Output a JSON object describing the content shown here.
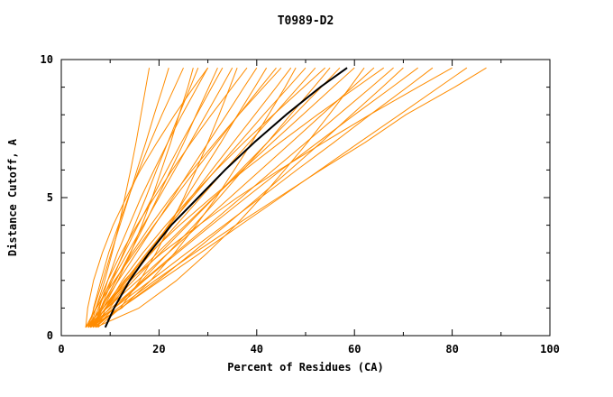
{
  "title": "T0989-D2",
  "chart_data": {
    "type": "line",
    "title": "T0989-D2",
    "xlabel": "Percent of Residues (CA)",
    "ylabel": "Distance Cutoff, A",
    "xlim": [
      0,
      100
    ],
    "ylim": [
      0,
      10
    ],
    "x_major_ticks": [
      0,
      20,
      40,
      60,
      80,
      100
    ],
    "x_minor_ticks": [
      10,
      30,
      50,
      70,
      90
    ],
    "y_major_ticks": [
      0,
      5,
      10
    ],
    "y_minor_ticks": [
      1,
      2,
      3,
      4,
      6,
      7,
      8,
      9
    ],
    "grid": false,
    "legend": "none",
    "colors": {
      "model_lines": "#ff8c00",
      "highlight_line": "#000000"
    },
    "y_grid": [
      0.3,
      1,
      2,
      3,
      4,
      5,
      6,
      7,
      8,
      9,
      9.7
    ],
    "orange_series_x": [
      [
        5,
        7.1,
        8.9,
        10.4,
        11.8,
        13.0,
        14.2,
        15.3,
        16.3,
        17.3,
        18
      ],
      [
        5.5,
        6.7,
        8.5,
        10.2,
        12.0,
        13.8,
        15.5,
        17.3,
        19.0,
        20.8,
        22
      ],
      [
        6,
        6.6,
        8.1,
        9.7,
        11.7,
        13.7,
        15.9,
        18.2,
        20.6,
        23.2,
        25
      ],
      [
        5,
        8.6,
        11.6,
        14.2,
        16.5,
        18.6,
        20.5,
        22.4,
        24.1,
        25.9,
        27
      ],
      [
        6.5,
        8.1,
        10.4,
        12.7,
        15.0,
        17.3,
        19.5,
        21.8,
        24.1,
        26.4,
        28
      ],
      [
        7,
        7.8,
        9.5,
        11.5,
        13.9,
        16.3,
        19.0,
        21.8,
        24.7,
        27.8,
        30
      ],
      [
        5,
        5.4,
        6.6,
        8.4,
        10.6,
        13.3,
        16.2,
        19.6,
        23.2,
        27.1,
        30
      ],
      [
        5.5,
        8.1,
        11.2,
        14.1,
        17.0,
        19.7,
        22.4,
        25.1,
        27.6,
        30.2,
        32
      ],
      [
        6,
        7.6,
        10.1,
        12.9,
        15.7,
        18.6,
        21.6,
        24.6,
        27.7,
        30.8,
        33
      ],
      [
        5,
        7.2,
        10.4,
        13.6,
        16.8,
        20.0,
        23.2,
        26.4,
        29.6,
        32.8,
        35
      ],
      [
        7.5,
        12.1,
        16.1,
        19.4,
        22.3,
        25.1,
        27.6,
        30.0,
        32.3,
        34.5,
        36
      ],
      [
        6,
        7.1,
        9.5,
        12.3,
        15.5,
        19.0,
        22.7,
        26.6,
        30.7,
        35.0,
        38
      ],
      [
        5.5,
        8.1,
        11.7,
        15.4,
        19.1,
        22.8,
        26.4,
        30.1,
        33.8,
        37.4,
        40
      ],
      [
        6.5,
        9.9,
        14.1,
        18.0,
        21.9,
        25.5,
        29.1,
        32.7,
        36.1,
        39.6,
        42
      ],
      [
        5,
        7.2,
        10.9,
        14.9,
        19.0,
        23.2,
        27.5,
        31.9,
        36.3,
        40.8,
        44
      ],
      [
        7,
        8.3,
        11.1,
        14.5,
        18.3,
        22.4,
        26.8,
        31.5,
        36.3,
        41.4,
        45
      ],
      [
        6,
        9.1,
        13.4,
        17.8,
        22.2,
        26.5,
        30.8,
        35.2,
        39.6,
        44.0,
        47
      ],
      [
        5.5,
        12.4,
        18.3,
        23.2,
        27.6,
        31.7,
        35.4,
        39.0,
        42.4,
        45.8,
        48
      ],
      [
        6.5,
        9.0,
        13.1,
        17.5,
        22.1,
        26.8,
        31.6,
        36.5,
        41.4,
        46.5,
        50
      ],
      [
        5,
        8.5,
        13.5,
        18.5,
        23.5,
        28.5,
        33.5,
        38.5,
        43.5,
        48.5,
        52
      ],
      [
        7.5,
        9.1,
        12.5,
        16.7,
        21.4,
        26.4,
        31.7,
        37.4,
        43.4,
        49.6,
        54
      ],
      [
        6,
        10.8,
        16.5,
        21.9,
        27.2,
        32.3,
        37.2,
        42.2,
        46.9,
        51.7,
        55
      ],
      [
        5.5,
        9.3,
        14.8,
        20.3,
        25.8,
        31.3,
        36.7,
        42.2,
        47.7,
        53.2,
        57
      ],
      [
        6,
        9.1,
        14.2,
        19.7,
        25.4,
        31.2,
        37.1,
        43.2,
        49.4,
        55.6,
        60
      ],
      [
        7,
        15.9,
        23.6,
        29.9,
        35.7,
        40.9,
        45.7,
        50.4,
        54.8,
        59.1,
        62
      ],
      [
        5,
        9.4,
        15.7,
        21.9,
        28.2,
        34.5,
        40.8,
        47.1,
        53.3,
        59.6,
        64
      ],
      [
        6.5,
        8.5,
        12.9,
        18.2,
        24.2,
        30.7,
        37.5,
        44.8,
        52.4,
        60.4,
        66
      ],
      [
        5.5,
        10.2,
        16.8,
        23.4,
        30.1,
        36.8,
        43.4,
        50.1,
        56.7,
        63.4,
        68
      ],
      [
        6,
        12.2,
        19.8,
        26.8,
        33.7,
        40.3,
        46.8,
        53.2,
        59.4,
        65.7,
        70
      ],
      [
        7,
        10.8,
        17.0,
        23.8,
        30.7,
        37.8,
        45.0,
        52.5,
        60.0,
        67.7,
        73
      ],
      [
        5.5,
        10.8,
        18.3,
        25.7,
        33.3,
        40.8,
        48.2,
        55.8,
        63.2,
        70.8,
        76
      ],
      [
        6,
        8.5,
        14.0,
        20.6,
        28.1,
        36.0,
        44.6,
        53.7,
        63.1,
        73.0,
        80
      ],
      [
        6.5,
        12.2,
        20.3,
        28.5,
        36.6,
        44.8,
        52.9,
        61.0,
        69.2,
        77.3,
        83
      ],
      [
        7,
        11.6,
        19.2,
        27.3,
        35.7,
        44.4,
        53.1,
        62.2,
        70.5,
        80.5,
        87
      ]
    ],
    "black_series_x": [
      9,
      10.8,
      14.0,
      18.0,
      22.5,
      28.0,
      33.5,
      39.5,
      46.0,
      53.0,
      58.5
    ]
  }
}
